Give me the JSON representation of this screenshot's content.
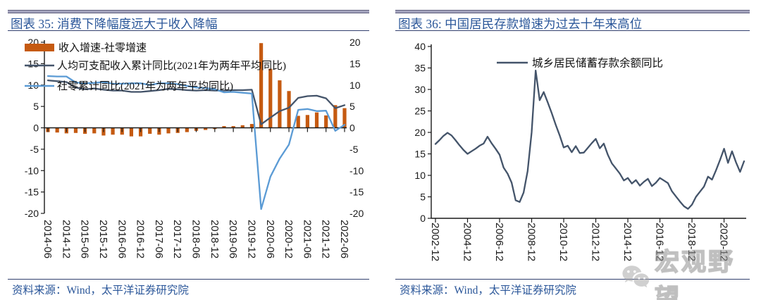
{
  "panels": {
    "left": {
      "title": "图表 35:  消费下降幅度远大于收入降幅",
      "source": "资料来源：Wind，太平洋证券研究院"
    },
    "right": {
      "title": "图表 36:  中国居民存款增速为过去十年来高位",
      "source": "资料来源：Wind，太平洋证券研究院"
    }
  },
  "watermark": {
    "text": "宏观野望",
    "icon": "wechat-icon"
  },
  "colors": {
    "bar_orange": "#C55A11",
    "line_navy": "#44546A",
    "line_blue": "#5B9BD5",
    "title_blue": "#2a5699",
    "rule_navy": "#32406e",
    "top_bar_gray": "#a3a3bd",
    "axis_black": "#1a1a1a",
    "watermark_gray": "#9a9a9a"
  },
  "chart_data": [
    {
      "id": "chart35",
      "type": "bar+line",
      "title": "图表 35: 消费下降幅度远大于收入降幅",
      "grid": false,
      "legend_position": "top-left",
      "ylim": [
        -20,
        20
      ],
      "ytick_step": 5,
      "dual_axis": true,
      "categories": [
        "2014-06",
        "2014-09",
        "2014-12",
        "2015-03",
        "2015-06",
        "2015-09",
        "2015-12",
        "2016-03",
        "2016-06",
        "2016-09",
        "2016-12",
        "2017-03",
        "2017-06",
        "2017-09",
        "2017-12",
        "2018-03",
        "2018-06",
        "2018-09",
        "2018-12",
        "2019-03",
        "2019-06",
        "2019-09",
        "2019-12",
        "2020-03",
        "2020-06",
        "2020-09",
        "2020-12",
        "2021-03",
        "2021-06",
        "2021-09",
        "2021-12",
        "2022-03",
        "2022-06"
      ],
      "x_tick_labels": [
        "2014-06",
        "2014-12",
        "2015-06",
        "2015-12",
        "2016-06",
        "2016-12",
        "2017-06",
        "2017-12",
        "2018-06",
        "2018-12",
        "2019-06",
        "2019-12",
        "2020-06",
        "2020-12",
        "2021-06",
        "2021-12",
        "2022-06"
      ],
      "series": [
        {
          "name": "收入增速-社零增速",
          "type": "bar",
          "color": "#C55A11",
          "values": [
            -1.0,
            -1.1,
            -1.3,
            -1.2,
            -1.4,
            -1.3,
            -1.8,
            -1.6,
            -1.6,
            -2.0,
            -2.0,
            -1.4,
            -1.6,
            -1.3,
            -1.2,
            -1.0,
            -0.7,
            -0.5,
            -0.3,
            0.4,
            0.4,
            0.6,
            0.9,
            19.8,
            13.8,
            11.1,
            8.6,
            2.8,
            3.0,
            3.6,
            2.9,
            5.3,
            4.6
          ]
        },
        {
          "name": "人均可支配收入累计同比(2021年为两年平均同比)",
          "type": "line",
          "color": "#44546A",
          "values": [
            11.1,
            10.9,
            10.7,
            9.4,
            9.0,
            9.2,
            8.9,
            8.7,
            8.7,
            8.4,
            8.4,
            8.6,
            8.8,
            9.1,
            9.0,
            8.8,
            8.7,
            8.8,
            8.7,
            8.7,
            8.8,
            8.8,
            8.9,
            0.8,
            2.4,
            3.9,
            4.7,
            7.0,
            7.4,
            7.5,
            6.9,
            4.6,
            5.3
          ]
        },
        {
          "name": "社零累计同比(2021年为两年平均同比)",
          "type": "line",
          "color": "#5B9BD5",
          "values": [
            12.1,
            12.0,
            12.0,
            10.6,
            10.4,
            10.5,
            10.7,
            10.3,
            10.3,
            10.4,
            10.4,
            10.0,
            10.4,
            10.4,
            10.2,
            9.8,
            9.4,
            9.3,
            9.0,
            8.3,
            8.4,
            8.2,
            8.0,
            -19.0,
            -11.4,
            -7.2,
            -3.9,
            4.2,
            4.4,
            3.9,
            4.0,
            -0.7,
            0.7
          ]
        }
      ]
    },
    {
      "id": "chart36",
      "type": "line",
      "title": "图表 36: 中国居民存款增速为过去十年来高位",
      "grid": false,
      "legend_position": "top-center",
      "ylim": [
        0,
        40
      ],
      "ytick_step": 5,
      "x": [
        "2002-12",
        "2003-03",
        "2003-06",
        "2003-09",
        "2003-12",
        "2004-03",
        "2004-06",
        "2004-09",
        "2004-12",
        "2005-03",
        "2005-06",
        "2005-09",
        "2005-12",
        "2006-03",
        "2006-06",
        "2006-09",
        "2006-12",
        "2007-03",
        "2007-06",
        "2007-09",
        "2007-12",
        "2008-03",
        "2008-06",
        "2008-09",
        "2008-12",
        "2009-03",
        "2009-06",
        "2009-09",
        "2009-12",
        "2010-03",
        "2010-06",
        "2010-09",
        "2010-12",
        "2011-03",
        "2011-06",
        "2011-09",
        "2011-12",
        "2012-03",
        "2012-06",
        "2012-09",
        "2012-12",
        "2013-03",
        "2013-06",
        "2013-09",
        "2013-12",
        "2014-03",
        "2014-06",
        "2014-09",
        "2014-12",
        "2015-03",
        "2015-06",
        "2015-09",
        "2015-12",
        "2016-03",
        "2016-06",
        "2016-09",
        "2016-12",
        "2017-03",
        "2017-06",
        "2017-09",
        "2017-12",
        "2018-03",
        "2018-06",
        "2018-09",
        "2018-12",
        "2019-03",
        "2019-06",
        "2019-09",
        "2019-12",
        "2020-03",
        "2020-06",
        "2020-09",
        "2020-12",
        "2021-03",
        "2021-06",
        "2021-09",
        "2021-12",
        "2022-03"
      ],
      "x_tick_labels": [
        "2002-12",
        "2004-12",
        "2006-12",
        "2008-12",
        "2010-12",
        "2012-12",
        "2014-12",
        "2016-12",
        "2018-12",
        "2020-12"
      ],
      "series": [
        {
          "name": "城乡居民储蓄存款余额同比",
          "type": "line",
          "color": "#44546A",
          "values": [
            17.3,
            18.2,
            19.2,
            19.9,
            19.3,
            18.2,
            17.0,
            15.9,
            15.0,
            15.6,
            16.2,
            16.9,
            17.4,
            19.0,
            17.5,
            16.2,
            14.8,
            11.8,
            10.4,
            8.3,
            4.2,
            3.8,
            6.0,
            11.0,
            20.0,
            34.4,
            27.5,
            29.4,
            27.0,
            24.5,
            21.8,
            19.3,
            16.5,
            16.9,
            15.4,
            16.8,
            15.2,
            15.3,
            16.4,
            17.5,
            18.5,
            16.3,
            17.4,
            14.8,
            12.8,
            11.6,
            10.4,
            8.8,
            9.4,
            8.1,
            8.9,
            7.6,
            8.5,
            9.2,
            7.5,
            8.3,
            9.4,
            8.8,
            8.2,
            6.3,
            5.1,
            3.9,
            2.8,
            2.2,
            3.2,
            5.0,
            6.2,
            7.4,
            9.7,
            9.0,
            11.2,
            13.6,
            16.2,
            12.9,
            15.6,
            13.0,
            10.8,
            13.3
          ]
        }
      ]
    }
  ]
}
